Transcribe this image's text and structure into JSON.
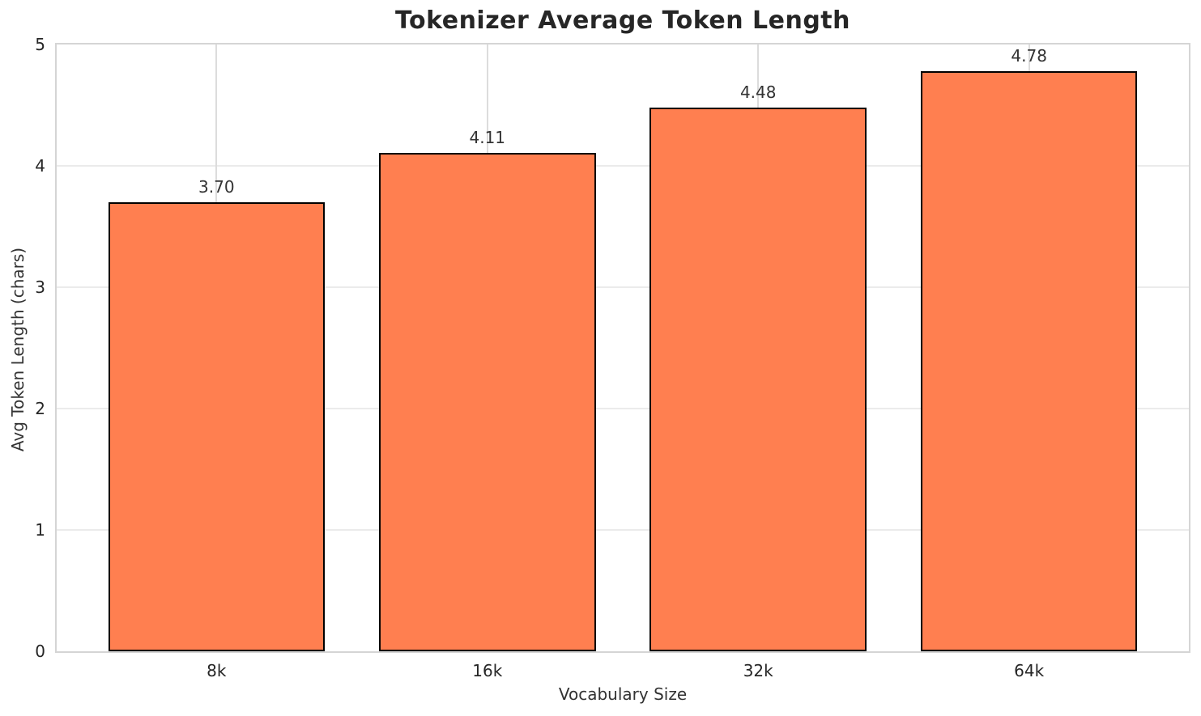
{
  "chart_data": {
    "type": "bar",
    "title": "Tokenizer Average Token Length",
    "xlabel": "Vocabulary Size",
    "ylabel": "Avg Token Length (chars)",
    "categories": [
      "8k",
      "16k",
      "32k",
      "64k"
    ],
    "values": [
      3.7,
      4.11,
      4.48,
      4.78
    ],
    "value_labels": [
      "3.70",
      "4.11",
      "4.48",
      "4.78"
    ],
    "ylim": [
      0,
      5
    ],
    "yticks": [
      0,
      1,
      2,
      3,
      4,
      5
    ],
    "ytick_labels": [
      "0",
      "1",
      "2",
      "3",
      "4",
      "5"
    ],
    "grid": "both",
    "legend_position": "none",
    "colors": {
      "bar_fill": "#FF7F50",
      "bar_edge": "#000000",
      "grid_h": "#ebebeb",
      "grid_v": "#dcdcdc",
      "spine": "#d5d5d5",
      "title_text": "#262626",
      "tick_text": "#262626",
      "label_text": "#333333",
      "background": "#ffffff"
    }
  }
}
